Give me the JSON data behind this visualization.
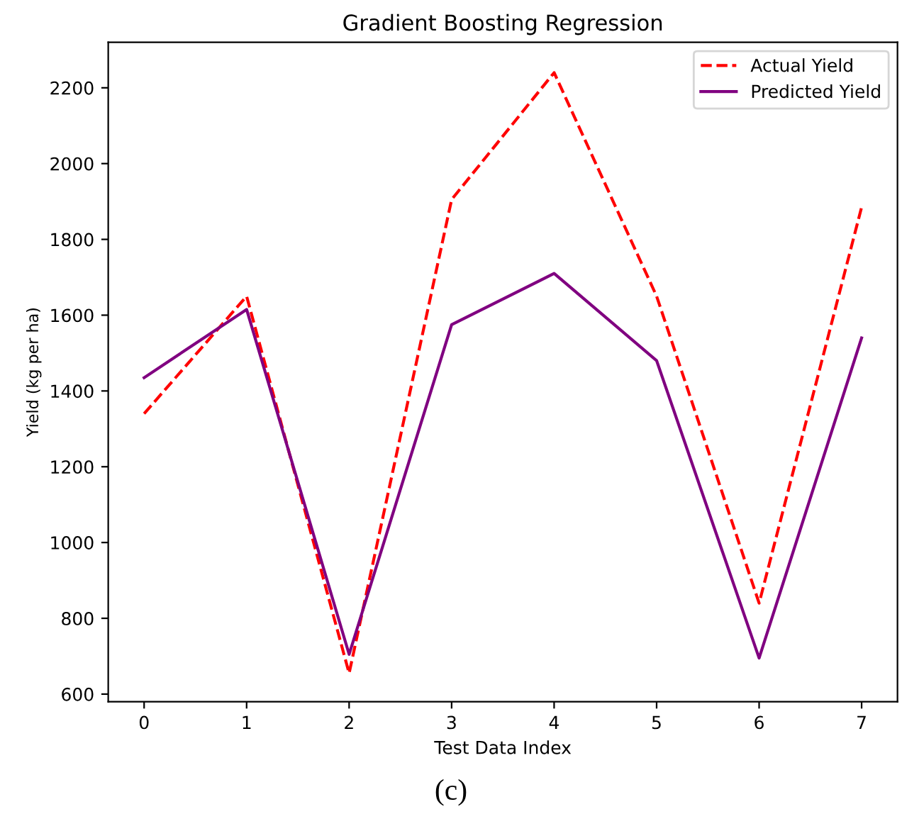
{
  "chart_data": {
    "type": "line",
    "title": "Gradient Boosting Regression",
    "xlabel": "Test Data Index",
    "ylabel": "Yield (kg per ha)",
    "x": [
      0,
      1,
      2,
      3,
      4,
      5,
      6,
      7
    ],
    "series": [
      {
        "name": "Actual Yield",
        "color": "#ff0000",
        "line_style": "dashed",
        "values": [
          1340,
          1650,
          655,
          1905,
          2240,
          1650,
          840,
          1885
        ]
      },
      {
        "name": "Predicted Yield",
        "color": "#800080",
        "line_style": "solid",
        "values": [
          1435,
          1615,
          705,
          1575,
          1710,
          1480,
          695,
          1540
        ]
      }
    ],
    "xlim": [
      -0.35,
      7.35
    ],
    "xticks": [
      0,
      1,
      2,
      3,
      4,
      5,
      6,
      7
    ],
    "ylim": [
      580,
      2320
    ],
    "yticks": [
      600,
      800,
      1000,
      1200,
      1400,
      1600,
      1800,
      2000,
      2200
    ],
    "grid": false,
    "legend": "top right",
    "marker": "none",
    "annotations": [
      "(c)"
    ]
  }
}
